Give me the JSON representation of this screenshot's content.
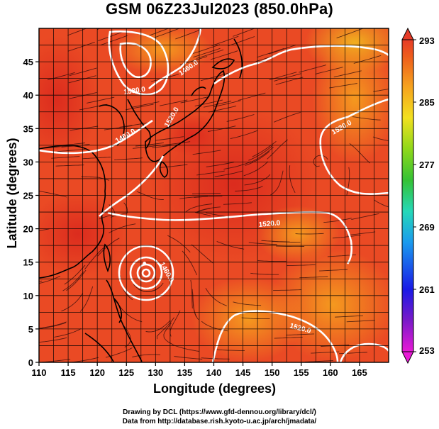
{
  "title": "GSM 06Z23Jul2023 (850.0hPa)",
  "xlabel": "Longitude (degrees)",
  "ylabel": "Latitude  (degrees)",
  "credits": {
    "line1": "Drawing by DCL (https://www.gfd-dennou.org/library/dcl/)",
    "line2": "Data from http://database.rish.kyoto-u.ac.jp/arch/jmadata/"
  },
  "chart_data": {
    "type": "heatmap",
    "title": "GSM 06Z23Jul2023 (850.0hPa)",
    "xlabel": "Longitude (degrees)",
    "ylabel": "Latitude  (degrees)",
    "xlim": [
      110,
      170
    ],
    "ylim": [
      0,
      50
    ],
    "x_ticks": [
      110,
      115,
      120,
      125,
      130,
      135,
      140,
      145,
      150,
      155,
      160,
      165
    ],
    "y_ticks": [
      0,
      5,
      10,
      15,
      20,
      25,
      30,
      35,
      40,
      45
    ],
    "grid": true,
    "colorbar": {
      "range": [
        253,
        293
      ],
      "ticks": [
        253,
        261,
        269,
        277,
        285,
        293
      ],
      "colors": [
        "#e81ad6",
        "#5a14c8",
        "#1a1ae6",
        "#1a9aee",
        "#25d8b8",
        "#35c235",
        "#8fd81a",
        "#f2e020",
        "#f6a21e",
        "#ee5a1c",
        "#e63c28"
      ],
      "position": "right"
    },
    "contours": {
      "color": "#ffffff",
      "labels": [
        "1580.0",
        "1520.0",
        "1460.0",
        "1520.0",
        "1520.0",
        "1460.0",
        "1520.0",
        "1460.0"
      ]
    },
    "features": [
      {
        "name": "typhoon center",
        "lon": 128.1,
        "lat": 14.8
      }
    ]
  }
}
